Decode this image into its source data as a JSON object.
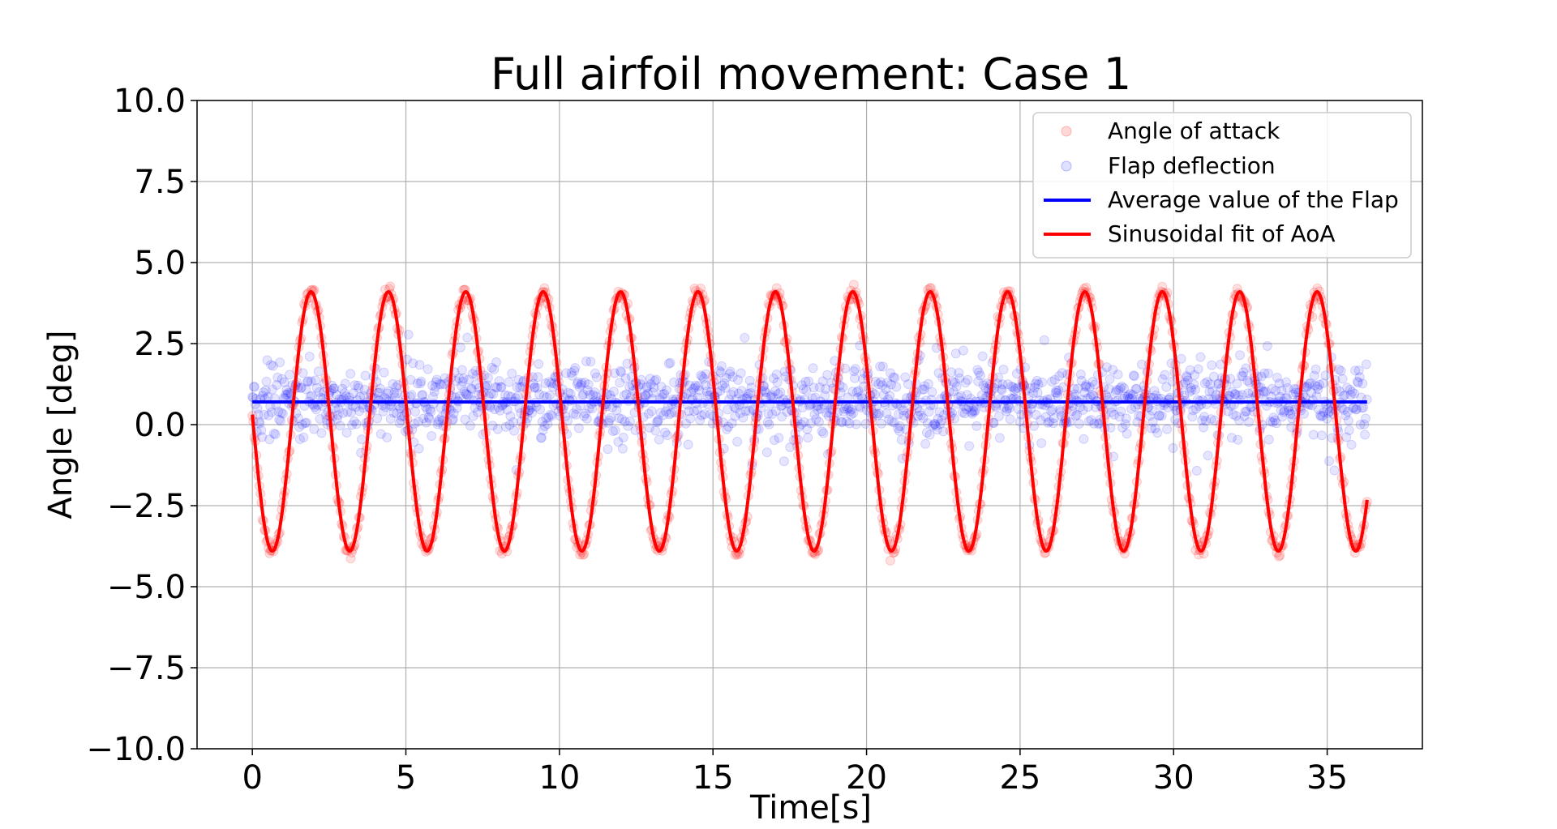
{
  "chart_data": {
    "type": "scatter",
    "title": "Full airfoil movement: Case 1",
    "xlabel": "Time[s]",
    "ylabel": "Angle [deg]",
    "xlim": [
      -1.8,
      38.1
    ],
    "ylim": [
      -10.0,
      10.0
    ],
    "x_ticks": [
      0,
      5,
      10,
      15,
      20,
      25,
      30,
      35
    ],
    "x_tick_labels": [
      "0",
      "5",
      "10",
      "15",
      "20",
      "25",
      "30",
      "35"
    ],
    "y_ticks": [
      10,
      7.5,
      5,
      2.5,
      0,
      -2.5,
      -5,
      -7.5,
      -10
    ],
    "y_tick_labels": [
      "10.0",
      "7.5",
      "5.0",
      "2.5",
      "0.0",
      "−2.5",
      "−5.0",
      "−7.5",
      "−10.0"
    ],
    "grid": true,
    "legend_position": "top-right",
    "series": [
      {
        "name": "Angle of attack",
        "kind": "scatter",
        "color": "#ff0000",
        "opacity": 0.12,
        "x_range": [
          0,
          36.3
        ],
        "model": {
          "offset": 0.1,
          "amplitude": 4.0,
          "period": 2.52,
          "phase_deg": 177
        },
        "noise_sd": 0.12
      },
      {
        "name": "Flap deflection",
        "kind": "scatter",
        "color": "#0000ff",
        "opacity": 0.1,
        "x_range": [
          0,
          36.3
        ],
        "mean": 0.7,
        "noise_sd": 0.55
      },
      {
        "name": "Average value of the Flap",
        "kind": "line",
        "color": "#0000ff",
        "x": [
          0,
          36.3
        ],
        "y": [
          0.7,
          0.7
        ]
      },
      {
        "name": "Sinusoidal fit of AoA",
        "kind": "line",
        "color": "#ff0000",
        "x_range": [
          0,
          36.3
        ],
        "model": {
          "offset": 0.1,
          "amplitude": 4.0,
          "period": 2.52,
          "phase_deg": 177
        }
      }
    ]
  }
}
